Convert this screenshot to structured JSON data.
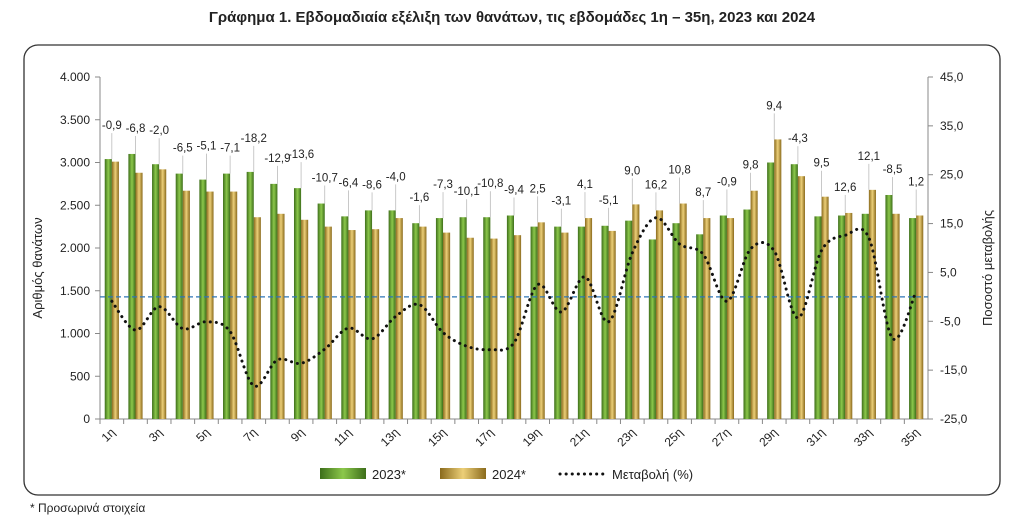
{
  "chart_data": {
    "type": "bar_line",
    "title": "Γράφημα 1.  Εβδομαδιαία εξέλιξη των θανάτων, τις εβδομάδες 1η – 35η, 2023 και 2024",
    "footnote": "* Προσωρινά στοιχεία",
    "y_label": "Αριθμός θανάτων",
    "y2_label": "Ποσοστό μεταβολής",
    "categories": [
      "1η",
      null,
      "3η",
      null,
      "5η",
      null,
      "7η",
      null,
      "9η",
      null,
      "11η",
      null,
      "13η",
      null,
      "15η",
      null,
      "17η",
      null,
      "19η",
      null,
      "21η",
      null,
      "23η",
      null,
      "25η",
      null,
      "27η",
      null,
      "29η",
      null,
      "31η",
      null,
      "33η",
      null,
      "35η"
    ],
    "series": [
      {
        "name": "2023*",
        "color": "#6ea832",
        "values": [
          3040,
          3100,
          2980,
          2870,
          2800,
          2870,
          2890,
          2750,
          2700,
          2520,
          2370,
          2440,
          2440,
          2290,
          2350,
          2360,
          2360,
          2380,
          2250,
          2250,
          2250,
          2260,
          2320,
          2100,
          2290,
          2160,
          2380,
          2450,
          3000,
          2980,
          2370,
          2380,
          2400,
          2620,
          2350
        ]
      },
      {
        "name": "2024*",
        "color": "#c9a443",
        "values": [
          3010,
          2880,
          2920,
          2670,
          2660,
          2660,
          2360,
          2400,
          2330,
          2250,
          2210,
          2220,
          2350,
          2250,
          2180,
          2120,
          2110,
          2150,
          2300,
          2180,
          2350,
          2200,
          2510,
          2440,
          2520,
          2350,
          2350,
          2670,
          3270,
          2840,
          2600,
          2410,
          2680,
          2400,
          2380
        ]
      },
      {
        "name": "Μεταβολή (%)",
        "type": "line",
        "axis": "y2",
        "color": "#111111",
        "values": [
          -0.9,
          -6.8,
          -2.0,
          -6.5,
          -5.1,
          -7.1,
          -18.2,
          -12.9,
          -13.6,
          -10.7,
          -6.4,
          -8.6,
          -4.0,
          -1.6,
          -7.3,
          -10.1,
          -10.8,
          -9.4,
          2.5,
          -3.1,
          4.1,
          -5.1,
          9.0,
          16.2,
          10.8,
          8.7,
          -0.9,
          9.8,
          9.4,
          -4.3,
          9.5,
          12.6,
          12.1,
          -8.5,
          1.2
        ],
        "value_labels": [
          "-0,9",
          "-6,8",
          "-2,0",
          "-6,5",
          "-5,1",
          "-7,1",
          "-18,2",
          "-12,9",
          "-13,6",
          "-10,7",
          "-6,4",
          "-8,6",
          "-4,0",
          "-1,6",
          "-7,3",
          "-10,1",
          "-10,8",
          "-9,4",
          "2,5",
          "-3,1",
          "4,1",
          "-5,1",
          "9,0",
          "16,2",
          "10,8",
          "8,7",
          "-0,9",
          "9,8",
          "9,4",
          "-4,3",
          "9,5",
          "12,6",
          "12,1",
          "-8,5",
          "1,2"
        ]
      }
    ],
    "reference_line": {
      "axis": "y2",
      "value": 0,
      "color": "#2e75b6"
    },
    "ylim": [
      0,
      4000
    ],
    "yticks": [
      0,
      500,
      {
        "value": 1000,
        "label": "1.000"
      },
      {
        "value": 1500,
        "label": "1.500"
      },
      {
        "value": 2000,
        "label": "2.000"
      },
      {
        "value": 2500,
        "label": "2.500"
      },
      {
        "value": 3000,
        "label": "3.000"
      },
      {
        "value": 3500,
        "label": "3.500"
      },
      {
        "value": 4000,
        "label": "4.000"
      }
    ],
    "y2lim": [
      -25,
      45
    ],
    "y2ticks": [
      {
        "value": -25,
        "label": "-25,0"
      },
      {
        "value": -15,
        "label": "-15,0"
      },
      {
        "value": -5,
        "label": "-5,0"
      },
      {
        "value": 5,
        "label": "5,0"
      },
      {
        "value": 15,
        "label": "15,0"
      },
      {
        "value": 25,
        "label": "25,0"
      },
      {
        "value": 35,
        "label": "35,0"
      },
      {
        "value": 45,
        "label": "45,0"
      }
    ],
    "legend": "bottom"
  }
}
